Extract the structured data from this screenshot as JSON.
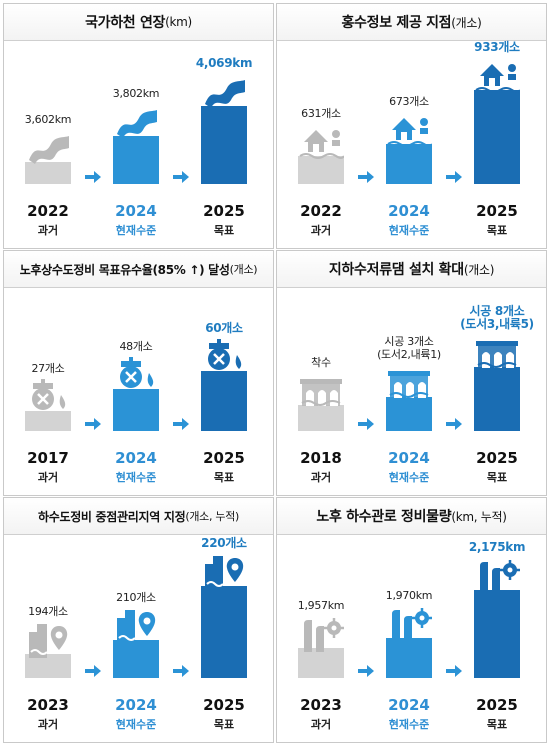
{
  "chart_data": [
    {
      "type": "bar",
      "title": "국가하천 연장",
      "unit": "(km)",
      "categories": [
        "2022",
        "2024",
        "2025"
      ],
      "labels": [
        "과거",
        "현재수준",
        "목표"
      ],
      "values": [
        3602,
        3802,
        4069
      ],
      "value_labels": [
        "3,602km",
        "3,802km",
        "4,069km"
      ]
    },
    {
      "type": "bar",
      "title": "홍수정보 제공 지점",
      "unit": "(개소)",
      "categories": [
        "2022",
        "2024",
        "2025"
      ],
      "labels": [
        "과거",
        "현재수준",
        "목표"
      ],
      "values": [
        631,
        673,
        933
      ],
      "value_labels": [
        "631개소",
        "673개소",
        "933개소"
      ]
    },
    {
      "type": "bar",
      "title": "노후상수도정비 목표유수율(85% ↑) 달성",
      "unit": "(개소)",
      "categories": [
        "2017",
        "2024",
        "2025"
      ],
      "labels": [
        "과거",
        "현재수준",
        "목표"
      ],
      "values": [
        27,
        48,
        60
      ],
      "value_labels": [
        "27개소",
        "48개소",
        "60개소"
      ]
    },
    {
      "type": "bar",
      "title": "지하수저류댐 설치 확대",
      "unit": "(개소)",
      "categories": [
        "2018",
        "2024",
        "2025"
      ],
      "labels": [
        "과거",
        "현재수준",
        "목표"
      ],
      "values": [
        1,
        3,
        8
      ],
      "value_labels": [
        [
          "착수"
        ],
        [
          "시공 3개소",
          "(도서2,내륙1)"
        ],
        [
          "시공 8개소",
          "(도서3,내륙5)"
        ]
      ]
    },
    {
      "type": "bar",
      "title": "하수도정비 중점관리지역 지정",
      "unit": "(개소, 누적)",
      "categories": [
        "2023",
        "2024",
        "2025"
      ],
      "labels": [
        "과거",
        "현재수준",
        "목표"
      ],
      "values": [
        194,
        210,
        220
      ],
      "value_labels": [
        "194개소",
        "210개소",
        "220개소"
      ]
    },
    {
      "type": "bar",
      "title": "노후 하수관로 정비물량",
      "unit": "(km, 누적)",
      "categories": [
        "2023",
        "2024",
        "2025"
      ],
      "labels": [
        "과거",
        "현재수준",
        "목표"
      ],
      "values": [
        1957,
        1970,
        2175
      ],
      "value_labels": [
        "1,957km",
        "1,970km",
        "2,175km"
      ]
    }
  ],
  "colors": {
    "past": "#d3d3d3",
    "current": "#2b93d6",
    "target": "#1a6db3",
    "arrow": "#2b93d6",
    "text_blue": "#2f8fd3",
    "value_blue": "#1f7cc0"
  },
  "icons": [
    "river-icon",
    "house-flood-icon",
    "faucet-icon",
    "dam-icon",
    "sewer-pin-icon",
    "pipe-gear-icon"
  ]
}
